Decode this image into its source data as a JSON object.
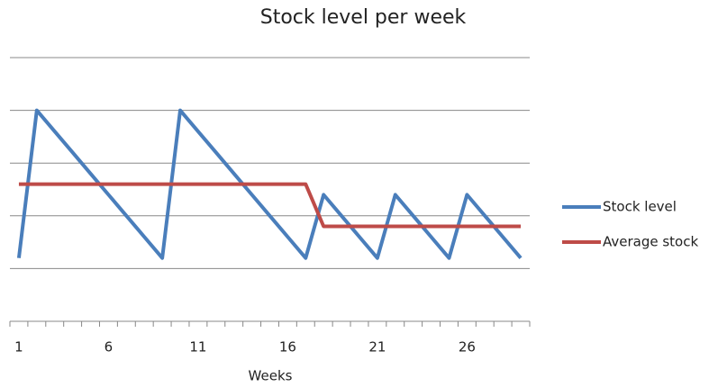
{
  "chart_data": {
    "type": "line",
    "title": "Stock level per week",
    "x_label": "Weeks",
    "categories": [
      "1",
      null,
      null,
      null,
      null,
      "6",
      null,
      null,
      null,
      null,
      "11",
      null,
      null,
      null,
      null,
      "16",
      null,
      null,
      null,
      null,
      "21",
      null,
      null,
      null,
      null,
      "26",
      null,
      null,
      null
    ],
    "series": [
      {
        "name": "Stock level",
        "color": "#4a7ebb",
        "values": [
          1.2,
          4.0,
          3.6,
          3.2,
          2.8,
          2.4,
          2.0,
          1.6,
          1.2,
          4.0,
          3.6,
          3.2,
          2.8,
          2.4,
          2.0,
          1.6,
          1.2,
          2.4,
          2.0,
          1.6,
          1.2,
          2.4,
          2.0,
          1.6,
          1.2,
          2.4,
          2.0,
          1.6,
          1.2
        ]
      },
      {
        "name": "Average stock",
        "color": "#be4b48",
        "values": [
          2.6,
          2.6,
          2.6,
          2.6,
          2.6,
          2.6,
          2.6,
          2.6,
          2.6,
          2.6,
          2.6,
          2.6,
          2.6,
          2.6,
          2.6,
          2.6,
          2.6,
          1.8,
          1.8,
          1.8,
          1.8,
          1.8,
          1.8,
          1.8,
          1.8,
          1.8,
          1.8,
          1.8,
          1.8
        ]
      }
    ],
    "ylim": [
      0,
      5
    ],
    "yticks": [
      1,
      2,
      3,
      4,
      5
    ],
    "grid": true,
    "legend": "right"
  }
}
